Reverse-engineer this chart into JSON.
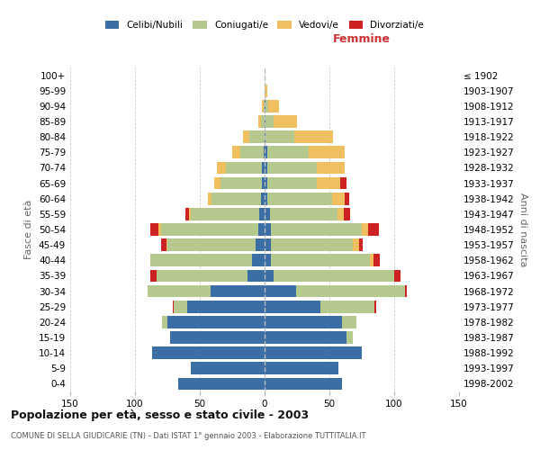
{
  "age_groups": [
    "0-4",
    "5-9",
    "10-14",
    "15-19",
    "20-24",
    "25-29",
    "30-34",
    "35-39",
    "40-44",
    "45-49",
    "50-54",
    "55-59",
    "60-64",
    "65-69",
    "70-74",
    "75-79",
    "80-84",
    "85-89",
    "90-94",
    "95-99",
    "100+"
  ],
  "birth_years": [
    "1998-2002",
    "1993-1997",
    "1988-1992",
    "1983-1987",
    "1978-1982",
    "1973-1977",
    "1968-1972",
    "1963-1967",
    "1958-1962",
    "1953-1957",
    "1948-1952",
    "1943-1947",
    "1938-1942",
    "1933-1937",
    "1928-1932",
    "1923-1927",
    "1918-1922",
    "1913-1917",
    "1908-1912",
    "1903-1907",
    "≤ 1902"
  ],
  "male_celibe": [
    67,
    57,
    87,
    73,
    75,
    60,
    42,
    13,
    10,
    7,
    5,
    4,
    3,
    2,
    2,
    1,
    0,
    0,
    0,
    0,
    0
  ],
  "male_coniugato": [
    0,
    0,
    0,
    0,
    4,
    10,
    48,
    70,
    78,
    68,
    75,
    53,
    38,
    32,
    28,
    18,
    12,
    3,
    1,
    0,
    0
  ],
  "male_vedovo": [
    0,
    0,
    0,
    0,
    0,
    0,
    0,
    0,
    0,
    1,
    2,
    1,
    3,
    5,
    7,
    6,
    5,
    2,
    1,
    0,
    0
  ],
  "male_divorziato": [
    0,
    0,
    0,
    0,
    0,
    1,
    0,
    5,
    0,
    4,
    6,
    3,
    0,
    0,
    0,
    0,
    0,
    0,
    0,
    0,
    0
  ],
  "fem_nubile": [
    60,
    57,
    75,
    63,
    60,
    43,
    24,
    7,
    5,
    5,
    5,
    4,
    2,
    2,
    2,
    2,
    1,
    1,
    1,
    0,
    0
  ],
  "fem_coniugata": [
    0,
    0,
    0,
    5,
    11,
    42,
    84,
    93,
    76,
    63,
    70,
    52,
    50,
    38,
    38,
    32,
    22,
    6,
    2,
    0,
    0
  ],
  "fem_vedova": [
    0,
    0,
    0,
    0,
    0,
    0,
    0,
    0,
    3,
    5,
    5,
    5,
    10,
    18,
    22,
    28,
    30,
    18,
    8,
    2,
    0
  ],
  "fem_divorziata": [
    0,
    0,
    0,
    0,
    0,
    1,
    2,
    5,
    5,
    3,
    8,
    5,
    3,
    5,
    0,
    0,
    0,
    0,
    0,
    0,
    0
  ],
  "colors": {
    "celibe": "#3a6ea5",
    "coniugato": "#b5c98e",
    "vedovo": "#f0c060",
    "divorziato": "#cc2222"
  },
  "xlim": 150,
  "xticks": [
    -150,
    -100,
    -50,
    0,
    50,
    100,
    150
  ],
  "xtick_labels": [
    "150",
    "100",
    "50",
    "0",
    "50",
    "100",
    "150"
  ],
  "title": "Popolazione per età, sesso e stato civile - 2003",
  "subtitle": "COMUNE DI SELLA GIUDICARIE (TN) - Dati ISTAT 1° gennaio 2003 - Elaborazione TUTTITALIA.IT",
  "ylabel_left": "Fasce di età",
  "ylabel_right": "Anni di nascita",
  "header_right": "Femmine",
  "header_left_color": "#333333",
  "header_right_color": "#cc3333",
  "bg_color": "#ffffff",
  "grid_color": "#cccccc",
  "legend_labels": [
    "Celibi/Nubili",
    "Coniugati/e",
    "Vedovi/e",
    "Divorziati/e"
  ]
}
